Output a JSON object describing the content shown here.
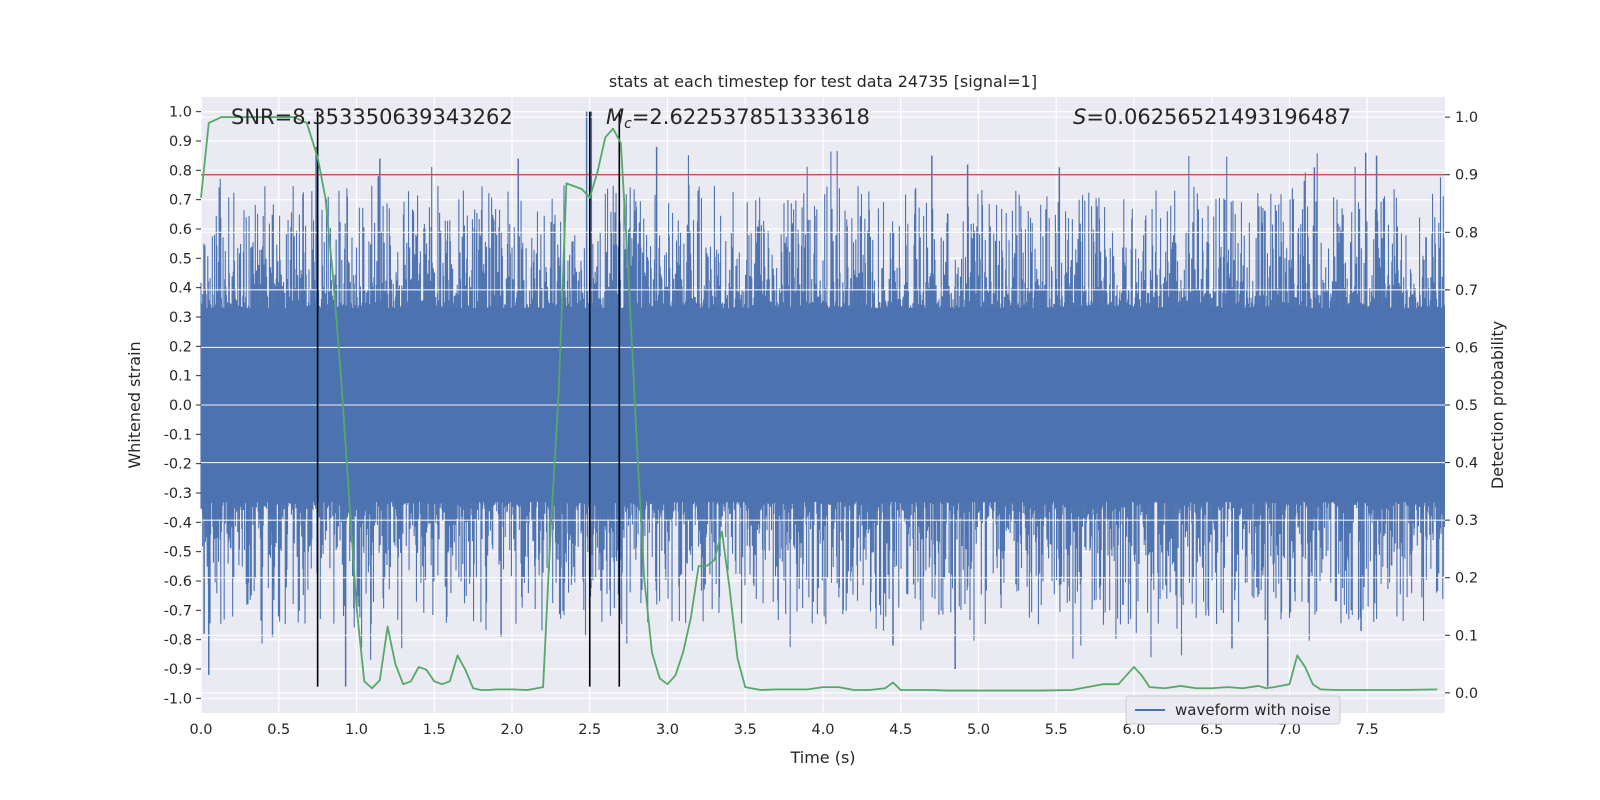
{
  "chart_data": {
    "type": "line",
    "title": "stats at each timestep for test data 24735 [signal=1]",
    "xlabel": "Time (s)",
    "ylabel_left": "Whitened strain",
    "ylabel_right": "Detection probability",
    "xlim": [
      0,
      8
    ],
    "ylim_left": [
      -1.05,
      1.05
    ],
    "ylim_right": [
      -0.035,
      1.035
    ],
    "x_ticks": [
      0.0,
      0.5,
      1.0,
      1.5,
      2.0,
      2.5,
      3.0,
      3.5,
      4.0,
      4.5,
      5.0,
      5.5,
      6.0,
      6.5,
      7.0,
      7.5
    ],
    "x_tick_labels": [
      "0.0",
      "0.5",
      "1.0",
      "1.5",
      "2.0",
      "2.5",
      "3.0",
      "3.5",
      "4.0",
      "4.5",
      "5.0",
      "5.5",
      "6.0",
      "6.5",
      "7.0",
      "7.5"
    ],
    "y_left_ticks": [
      1.0,
      0.9,
      0.8,
      0.7,
      0.6,
      0.5,
      0.4,
      0.3,
      0.2,
      0.1,
      0.0,
      -0.1,
      -0.2,
      -0.3,
      -0.4,
      -0.5,
      -0.6,
      -0.7,
      -0.8,
      -0.9,
      -1.0
    ],
    "y_left_tick_labels": [
      "1.0",
      "0.9",
      "0.8",
      "0.7",
      "0.6",
      "0.5",
      "0.4",
      "0.3",
      "0.2",
      "0.1",
      "0.0",
      "-0.1",
      "-0.2",
      "-0.3",
      "-0.4",
      "-0.5",
      "-0.6",
      "-0.7",
      "-0.8",
      "-0.9",
      "-1.0"
    ],
    "y_right_ticks": [
      1.0,
      0.9,
      0.8,
      0.7,
      0.6,
      0.5,
      0.4,
      0.3,
      0.2,
      0.1,
      0.0
    ],
    "y_right_tick_labels": [
      "1.0",
      "0.9",
      "0.8",
      "0.7",
      "0.6",
      "0.5",
      "0.4",
      "0.3",
      "0.2",
      "0.1",
      "0.0"
    ],
    "grid": true,
    "legend": {
      "placement": "lower-right",
      "entries": [
        {
          "label": "waveform with noise",
          "color": "#4c72b0"
        }
      ]
    },
    "annotations": {
      "snr": "SNR=8.353350639343262",
      "mc_symbol": "M",
      "mc_subscript": "c",
      "mc_value": "=2.622537851333618",
      "s_symbol": "S",
      "s_value": "=0.06256521493196487"
    },
    "threshold_right": 0.9,
    "vertical_lines_x": [
      0.75,
      2.5,
      2.69
    ],
    "vertical_lines_ymax_left": 1.0,
    "vertical_lines_ymin_left": -0.96,
    "waveform": {
      "name": "waveform with noise",
      "color": "#4c72b0",
      "t_start": 0.0,
      "t_end": 8.0,
      "bulk_amplitude": 0.33,
      "peak_spikes": [
        {
          "x": 0.74,
          "y": 0.88
        },
        {
          "x": 0.75,
          "y": 0.88
        },
        {
          "x": 1.14,
          "y": 0.78
        },
        {
          "x": 1.15,
          "y": 0.84
        },
        {
          "x": 2.04,
          "y": 0.84
        },
        {
          "x": 2.48,
          "y": 1.0
        },
        {
          "x": 2.51,
          "y": 1.0
        },
        {
          "x": 2.93,
          "y": 0.88
        },
        {
          "x": 4.7,
          "y": 0.85
        },
        {
          "x": 4.93,
          "y": 0.82
        },
        {
          "x": 5.52,
          "y": 0.81
        },
        {
          "x": 7.16,
          "y": 0.81
        },
        {
          "x": 7.49,
          "y": 0.86
        },
        {
          "x": 7.56,
          "y": 0.85
        },
        {
          "x": 0.02,
          "y": -0.78
        },
        {
          "x": 0.05,
          "y": -0.92
        },
        {
          "x": 0.46,
          "y": -0.79
        },
        {
          "x": 0.93,
          "y": -0.96
        },
        {
          "x": 1.93,
          "y": -0.79
        },
        {
          "x": 4.45,
          "y": -0.82
        },
        {
          "x": 4.85,
          "y": -0.9
        },
        {
          "x": 6.63,
          "y": -0.83
        },
        {
          "x": 6.86,
          "y": -0.96
        },
        {
          "x": 7.46,
          "y": -0.77
        }
      ]
    },
    "series": [
      {
        "name": "",
        "color": "#55a868",
        "axis": "right",
        "x": [
          0.0,
          0.05,
          0.13,
          0.2,
          0.3,
          0.4,
          0.5,
          0.6,
          0.68,
          0.75,
          0.8,
          0.85,
          0.9,
          0.95,
          1.0,
          1.05,
          1.1,
          1.15,
          1.2,
          1.25,
          1.3,
          1.35,
          1.4,
          1.45,
          1.5,
          1.55,
          1.6,
          1.65,
          1.7,
          1.75,
          1.8,
          1.85,
          1.9,
          1.95,
          2.0,
          2.1,
          2.2,
          2.25,
          2.3,
          2.35,
          2.4,
          2.45,
          2.5,
          2.55,
          2.6,
          2.65,
          2.7,
          2.75,
          2.8,
          2.85,
          2.9,
          2.95,
          3.0,
          3.05,
          3.1,
          3.15,
          3.2,
          3.25,
          3.3,
          3.35,
          3.4,
          3.45,
          3.5,
          3.6,
          3.7,
          3.8,
          3.9,
          4.0,
          4.1,
          4.2,
          4.3,
          4.4,
          4.45,
          4.5,
          4.6,
          4.7,
          4.8,
          4.9,
          5.0,
          5.2,
          5.4,
          5.6,
          5.7,
          5.8,
          5.9,
          6.0,
          6.05,
          6.1,
          6.2,
          6.3,
          6.4,
          6.5,
          6.6,
          6.7,
          6.8,
          6.85,
          6.9,
          7.0,
          7.05,
          7.1,
          7.15,
          7.2,
          7.3,
          7.5,
          7.7,
          7.95
        ],
        "y": [
          0.86,
          0.99,
          1.0,
          1.0,
          1.0,
          1.0,
          1.0,
          1.0,
          0.99,
          0.93,
          0.86,
          0.72,
          0.55,
          0.35,
          0.15,
          0.02,
          0.008,
          0.022,
          0.115,
          0.05,
          0.015,
          0.02,
          0.045,
          0.04,
          0.02,
          0.015,
          0.02,
          0.065,
          0.04,
          0.008,
          0.005,
          0.005,
          0.006,
          0.006,
          0.006,
          0.005,
          0.01,
          0.29,
          0.52,
          0.885,
          0.88,
          0.875,
          0.86,
          0.905,
          0.965,
          0.98,
          0.955,
          0.72,
          0.45,
          0.2,
          0.07,
          0.025,
          0.015,
          0.03,
          0.07,
          0.13,
          0.22,
          0.22,
          0.23,
          0.28,
          0.18,
          0.06,
          0.01,
          0.005,
          0.006,
          0.006,
          0.006,
          0.01,
          0.01,
          0.005,
          0.005,
          0.008,
          0.018,
          0.005,
          0.005,
          0.005,
          0.004,
          0.004,
          0.004,
          0.004,
          0.004,
          0.005,
          0.01,
          0.015,
          0.015,
          0.045,
          0.03,
          0.01,
          0.008,
          0.012,
          0.008,
          0.008,
          0.01,
          0.008,
          0.012,
          0.008,
          0.01,
          0.015,
          0.065,
          0.045,
          0.015,
          0.006,
          0.005,
          0.005,
          0.005,
          0.006
        ]
      }
    ]
  }
}
